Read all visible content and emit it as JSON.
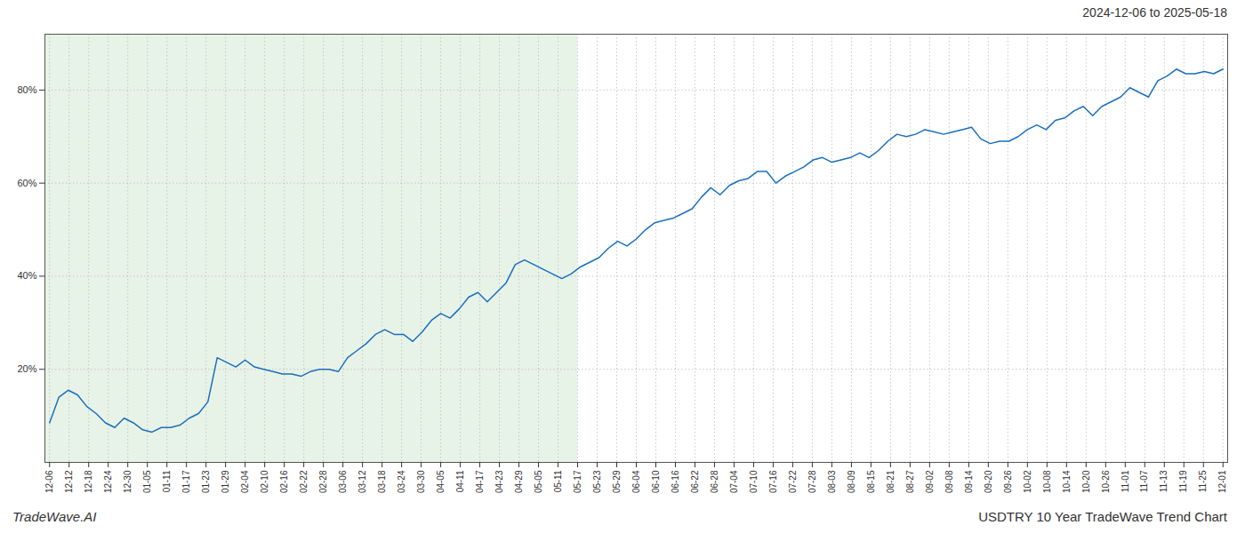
{
  "chart_data": {
    "type": "line",
    "title": "2024-12-06 to 2025-05-18",
    "annotations": [
      "TradeWave.AI",
      "USDTRY 10 Year TradeWave Trend Chart"
    ],
    "color": "#1a6fbd",
    "grid": true,
    "xlim": [
      -0.5,
      126.5
    ],
    "xticks": [
      {
        "value": 0,
        "label": "12-06"
      },
      {
        "value": 2.1,
        "label": "12-12"
      },
      {
        "value": 4.2,
        "label": "12-18"
      },
      {
        "value": 6.3,
        "label": "12-24"
      },
      {
        "value": 8.4,
        "label": "12-30"
      },
      {
        "value": 10.5,
        "label": "01-05"
      },
      {
        "value": 12.6,
        "label": "01-11"
      },
      {
        "value": 14.7,
        "label": "01-17"
      },
      {
        "value": 16.8,
        "label": "01-23"
      },
      {
        "value": 18.9,
        "label": "01-29"
      },
      {
        "value": 21,
        "label": "02-04"
      },
      {
        "value": 23.1,
        "label": "02-10"
      },
      {
        "value": 25.2,
        "label": "02-16"
      },
      {
        "value": 27.3,
        "label": "02-22"
      },
      {
        "value": 29.4,
        "label": "02-28"
      },
      {
        "value": 31.5,
        "label": "03-06"
      },
      {
        "value": 33.6,
        "label": "03-12"
      },
      {
        "value": 35.7,
        "label": "03-18"
      },
      {
        "value": 37.8,
        "label": "03-24"
      },
      {
        "value": 39.9,
        "label": "03-30"
      },
      {
        "value": 42,
        "label": "04-05"
      },
      {
        "value": 44.1,
        "label": "04-11"
      },
      {
        "value": 46.2,
        "label": "04-17"
      },
      {
        "value": 48.3,
        "label": "04-23"
      },
      {
        "value": 50.4,
        "label": "04-29"
      },
      {
        "value": 52.5,
        "label": "05-05"
      },
      {
        "value": 54.6,
        "label": "05-11"
      },
      {
        "value": 56.7,
        "label": "05-17"
      },
      {
        "value": 58.8,
        "label": "05-23"
      },
      {
        "value": 60.9,
        "label": "05-29"
      },
      {
        "value": 63,
        "label": "06-04"
      },
      {
        "value": 65.1,
        "label": "06-10"
      },
      {
        "value": 67.2,
        "label": "06-16"
      },
      {
        "value": 69.3,
        "label": "06-22"
      },
      {
        "value": 71.4,
        "label": "06-28"
      },
      {
        "value": 73.5,
        "label": "07-04"
      },
      {
        "value": 75.6,
        "label": "07-10"
      },
      {
        "value": 77.7,
        "label": "07-16"
      },
      {
        "value": 79.8,
        "label": "07-22"
      },
      {
        "value": 81.9,
        "label": "07-28"
      },
      {
        "value": 84,
        "label": "08-03"
      },
      {
        "value": 86.1,
        "label": "08-09"
      },
      {
        "value": 88.2,
        "label": "08-15"
      },
      {
        "value": 90.3,
        "label": "08-21"
      },
      {
        "value": 92.4,
        "label": "08-27"
      },
      {
        "value": 94.5,
        "label": "09-02"
      },
      {
        "value": 96.6,
        "label": "09-08"
      },
      {
        "value": 98.7,
        "label": "09-14"
      },
      {
        "value": 100.8,
        "label": "09-20"
      },
      {
        "value": 102.9,
        "label": "09-26"
      },
      {
        "value": 105,
        "label": "10-02"
      },
      {
        "value": 107.1,
        "label": "10-08"
      },
      {
        "value": 109.2,
        "label": "10-14"
      },
      {
        "value": 111.3,
        "label": "10-20"
      },
      {
        "value": 113.4,
        "label": "10-26"
      },
      {
        "value": 115.5,
        "label": "11-01"
      },
      {
        "value": 117.6,
        "label": "11-07"
      },
      {
        "value": 119.7,
        "label": "11-13"
      },
      {
        "value": 121.8,
        "label": "11-19"
      },
      {
        "value": 123.9,
        "label": "11-25"
      },
      {
        "value": 126,
        "label": "12-01"
      }
    ],
    "ylim": [
      0,
      92
    ],
    "yticks": [
      {
        "value": 20,
        "label": "20%"
      },
      {
        "value": 40,
        "label": "40%"
      },
      {
        "value": 60,
        "label": "60%"
      },
      {
        "value": 80,
        "label": "80%"
      }
    ],
    "shade": {
      "x0": -0.5,
      "x1": 56.7,
      "color": "#d6ead6"
    },
    "values": [
      8.5,
      14.0,
      15.5,
      14.5,
      12.0,
      10.5,
      8.5,
      7.5,
      9.5,
      8.5,
      7.0,
      6.5,
      7.5,
      7.5,
      8.0,
      9.5,
      10.5,
      13.0,
      22.5,
      21.5,
      20.5,
      22.0,
      20.5,
      20.0,
      19.5,
      19.0,
      19.0,
      18.5,
      19.5,
      20.0,
      20.0,
      19.5,
      22.5,
      24.0,
      25.5,
      27.5,
      28.5,
      27.5,
      27.5,
      26.0,
      28.0,
      30.5,
      32.0,
      31.0,
      33.0,
      35.5,
      36.5,
      34.5,
      36.5,
      38.5,
      42.5,
      43.5,
      42.5,
      41.5,
      40.5,
      39.5,
      40.5,
      42.0,
      43.0,
      44.0,
      46.0,
      47.5,
      46.5,
      48.0,
      50.0,
      51.5,
      52.0,
      52.5,
      53.5,
      54.5,
      57.0,
      59.0,
      57.5,
      59.5,
      60.5,
      61.0,
      62.5,
      62.5,
      60.0,
      61.5,
      62.5,
      63.5,
      65.0,
      65.5,
      64.5,
      65.0,
      65.5,
      66.5,
      65.5,
      67.0,
      69.0,
      70.5,
      70.0,
      70.5,
      71.5,
      71.0,
      70.5,
      71.0,
      71.5,
      72.0,
      69.5,
      68.5,
      69.0,
      69.0,
      70.0,
      71.5,
      72.5,
      71.5,
      73.5,
      74.0,
      75.5,
      76.5,
      74.5,
      76.5,
      77.5,
      78.5,
      80.5,
      79.5,
      78.5,
      82.0,
      83.0,
      84.5,
      83.5,
      83.5,
      84.0,
      83.5,
      84.5
    ]
  }
}
